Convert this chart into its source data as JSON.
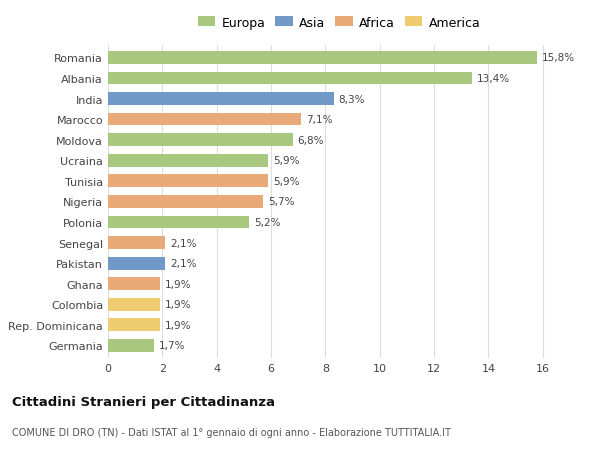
{
  "categories": [
    "Romania",
    "Albania",
    "India",
    "Marocco",
    "Moldova",
    "Ucraina",
    "Tunisia",
    "Nigeria",
    "Polonia",
    "Senegal",
    "Pakistan",
    "Ghana",
    "Colombia",
    "Rep. Dominicana",
    "Germania"
  ],
  "values": [
    15.8,
    13.4,
    8.3,
    7.1,
    6.8,
    5.9,
    5.9,
    5.7,
    5.2,
    2.1,
    2.1,
    1.9,
    1.9,
    1.9,
    1.7
  ],
  "labels": [
    "15,8%",
    "13,4%",
    "8,3%",
    "7,1%",
    "6,8%",
    "5,9%",
    "5,9%",
    "5,7%",
    "5,2%",
    "2,1%",
    "2,1%",
    "1,9%",
    "1,9%",
    "1,9%",
    "1,7%"
  ],
  "continents": [
    "Europa",
    "Europa",
    "Asia",
    "Africa",
    "Europa",
    "Europa",
    "Africa",
    "Africa",
    "Europa",
    "Africa",
    "Asia",
    "Africa",
    "America",
    "America",
    "Europa"
  ],
  "colors": {
    "Europa": "#a8c880",
    "Asia": "#7099c8",
    "Africa": "#e8aa78",
    "America": "#f0cc70"
  },
  "legend_labels": [
    "Europa",
    "Asia",
    "Africa",
    "America"
  ],
  "legend_colors": [
    "#a8c880",
    "#7099c8",
    "#e8aa78",
    "#f0cc70"
  ],
  "title": "Cittadini Stranieri per Cittadinanza",
  "subtitle": "COMUNE DI DRO (TN) - Dati ISTAT al 1° gennaio di ogni anno - Elaborazione TUTTITALIA.IT",
  "xlim": [
    0,
    17
  ],
  "xticks": [
    0,
    2,
    4,
    6,
    8,
    10,
    12,
    14,
    16
  ],
  "background_color": "#ffffff",
  "grid_color": "#dddddd",
  "bar_height": 0.62
}
